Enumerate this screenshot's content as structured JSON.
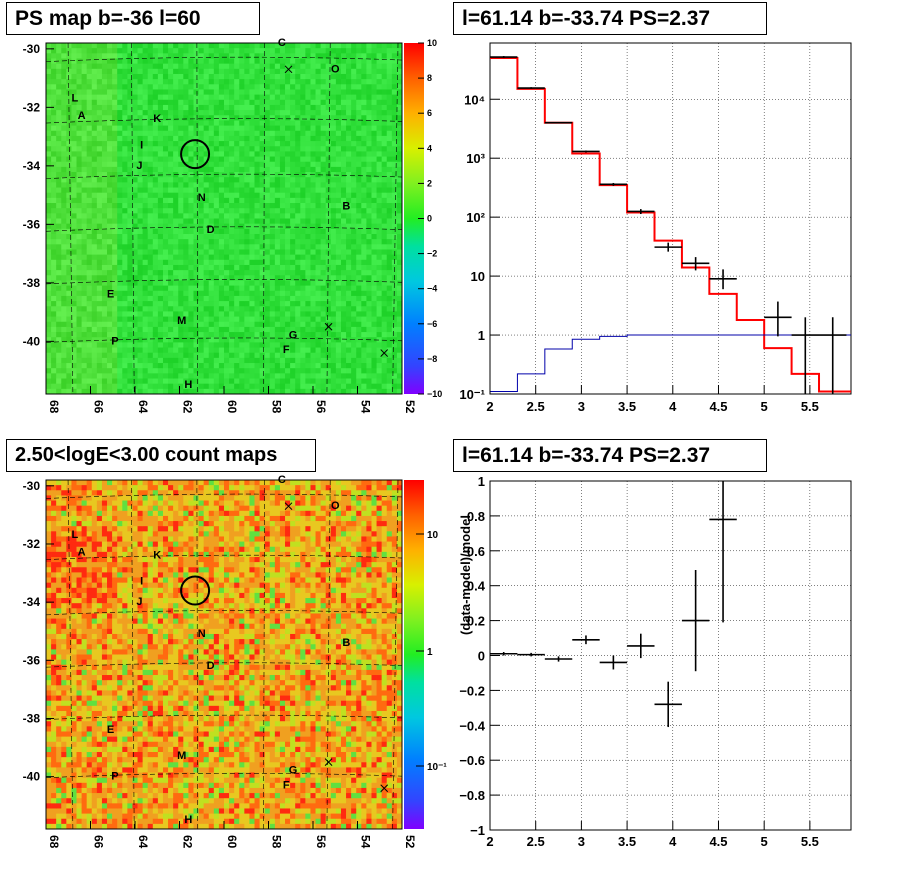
{
  "panels": {
    "top_left_title": "PS map b=-36 l=60",
    "top_right_title": "l=61.14 b=-33.74 PS=2.37",
    "bottom_left_title": "2.50<logE<3.00 count maps",
    "bottom_right_title": "l=61.14 b=-33.74 PS=2.37"
  },
  "chart_data": [
    {
      "type": "heatmap",
      "title": "PS map b=-36 l=60",
      "x_ticks": [
        "68",
        "66",
        "64",
        "62",
        "60",
        "58",
        "56",
        "54",
        "52"
      ],
      "y_ticks": [
        "-30",
        "-32",
        "-34",
        "-36",
        "-38",
        "-40"
      ],
      "xlim": [
        68,
        52
      ],
      "ylim": [
        -41.8,
        -29.8
      ],
      "colorbar": {
        "scale": "linear",
        "range": [
          -10,
          10
        ],
        "ticks": [
          "10",
          "8",
          "6",
          "4",
          "2",
          "0",
          "−2",
          "−4",
          "−6",
          "−8",
          "−10"
        ]
      },
      "dominant_value": 0,
      "source_labels": [
        {
          "label": "C",
          "l": 57.4,
          "b": -29.9
        },
        {
          "label": "O",
          "l": 55.0,
          "b": -30.8
        },
        {
          "label": "L",
          "l": 66.7,
          "b": -31.8
        },
        {
          "label": "A",
          "l": 66.4,
          "b": -32.4
        },
        {
          "label": "K",
          "l": 63.0,
          "b": -32.5
        },
        {
          "label": "I",
          "l": 63.7,
          "b": -33.4
        },
        {
          "label": "J",
          "l": 63.8,
          "b": -34.1
        },
        {
          "label": "N",
          "l": 61.0,
          "b": -35.2
        },
        {
          "label": "B",
          "l": 54.5,
          "b": -35.5
        },
        {
          "label": "D",
          "l": 60.6,
          "b": -36.3
        },
        {
          "label": "E",
          "l": 65.1,
          "b": -38.5
        },
        {
          "label": "M",
          "l": 61.9,
          "b": -39.4
        },
        {
          "label": "G",
          "l": 56.9,
          "b": -39.9
        },
        {
          "label": "P",
          "l": 64.9,
          "b": -40.1
        },
        {
          "label": "F",
          "l": 57.2,
          "b": -40.4
        },
        {
          "label": "H",
          "l": 61.6,
          "b": -41.6
        }
      ],
      "cross_markers": [
        {
          "l": 57.1,
          "b": -30.7
        },
        {
          "l": 55.3,
          "b": -39.5
        },
        {
          "l": 52.8,
          "b": -40.4
        }
      ],
      "circle": {
        "l": 61.3,
        "b": -33.6
      }
    },
    {
      "type": "line",
      "title": "l=61.14 b=-33.74 PS=2.37",
      "xscale": "linear",
      "yscale": "log",
      "xlim": [
        2,
        5.95
      ],
      "ylim": [
        0.1,
        90000
      ],
      "x_ticks": [
        "2",
        "2.5",
        "3",
        "3.5",
        "4",
        "4.5",
        "5",
        "5.5"
      ],
      "y_ticks": [
        "10⁻¹",
        "1",
        "10",
        "10²",
        "10³",
        "10⁴"
      ],
      "grid": true,
      "bin_edges": [
        2.0,
        2.3,
        2.6,
        2.9,
        3.2,
        3.5,
        3.8,
        4.1,
        4.4,
        4.7,
        5.0,
        5.3,
        5.6,
        5.95
      ],
      "series": [
        {
          "color": "#ff0000",
          "style": "step",
          "values": [
            50000,
            15000,
            4000,
            1200,
            350,
            120,
            40,
            14,
            5,
            1.8,
            0.6,
            0.22,
            0.11
          ]
        },
        {
          "color": "#0000aa",
          "style": "step",
          "values": [
            0.11,
            0.22,
            0.58,
            0.85,
            0.95,
            1.0,
            1.0,
            1.0,
            1.0,
            1.0,
            1.0,
            1.0,
            1.0
          ]
        },
        {
          "color": "#000000",
          "style": "errorbars",
          "points": [
            {
              "x": 2.15,
              "y": 52000,
              "ylo": 50000,
              "yhi": 54000
            },
            {
              "x": 2.45,
              "y": 15500,
              "ylo": 15000,
              "yhi": 16000
            },
            {
              "x": 2.75,
              "y": 4000,
              "ylo": 3900,
              "yhi": 4100
            },
            {
              "x": 3.05,
              "y": 1300,
              "ylo": 1250,
              "yhi": 1350
            },
            {
              "x": 3.35,
              "y": 360,
              "ylo": 340,
              "yhi": 380
            },
            {
              "x": 3.65,
              "y": 125,
              "ylo": 113,
              "yhi": 137
            },
            {
              "x": 3.95,
              "y": 31,
              "ylo": 26,
              "yhi": 37
            },
            {
              "x": 4.25,
              "y": 16.5,
              "ylo": 12.5,
              "yhi": 21
            },
            {
              "x": 4.55,
              "y": 9,
              "ylo": 6,
              "yhi": 13
            },
            {
              "x": 5.15,
              "y": 2,
              "ylo": 0.95,
              "yhi": 3.7
            },
            {
              "x": 5.45,
              "y": 1,
              "ylo": 0.1,
              "yhi": 2
            },
            {
              "x": 5.75,
              "y": 1,
              "ylo": 0.1,
              "yhi": 2
            }
          ]
        }
      ]
    },
    {
      "type": "heatmap",
      "title": "2.50<logE<3.00 count maps",
      "x_ticks": [
        "68",
        "66",
        "64",
        "62",
        "60",
        "58",
        "56",
        "54",
        "52"
      ],
      "y_ticks": [
        "-30",
        "-32",
        "-34",
        "-36",
        "-38",
        "-40"
      ],
      "xlim": [
        68,
        52
      ],
      "ylim": [
        -41.8,
        -29.8
      ],
      "colorbar": {
        "scale": "log",
        "ticks": [
          "10",
          "1",
          "10⁻¹"
        ]
      }
    },
    {
      "type": "scatter",
      "title": "l=61.14 b=-33.74 PS=2.37",
      "ylabel": "(data-model)/model",
      "xlim": [
        2,
        5.95
      ],
      "ylim": [
        -1,
        1
      ],
      "x_ticks": [
        "2",
        "2.5",
        "3",
        "3.5",
        "4",
        "4.5",
        "5",
        "5.5"
      ],
      "y_ticks": [
        "1",
        "0.8",
        "0.6",
        "0.4",
        "0.2",
        "0",
        "−0.2",
        "−0.4",
        "−0.6",
        "−0.8",
        "−1"
      ],
      "grid": true,
      "points": [
        {
          "x": 2.15,
          "xerr": 0.15,
          "y": 0.01,
          "yerr": 0.01
        },
        {
          "x": 2.45,
          "xerr": 0.15,
          "y": 0.005,
          "yerr": 0.01
        },
        {
          "x": 2.75,
          "xerr": 0.15,
          "y": -0.02,
          "yerr": 0.015
        },
        {
          "x": 3.05,
          "xerr": 0.15,
          "y": 0.09,
          "yerr": 0.025
        },
        {
          "x": 3.35,
          "xerr": 0.15,
          "y": -0.04,
          "yerr": 0.04
        },
        {
          "x": 3.65,
          "xerr": 0.15,
          "y": 0.055,
          "yerr": 0.07
        },
        {
          "x": 3.95,
          "xerr": 0.15,
          "y": -0.28,
          "yerr": 0.13
        },
        {
          "x": 4.25,
          "xerr": 0.15,
          "y": 0.2,
          "yerr": 0.29
        },
        {
          "x": 4.55,
          "xerr": 0.15,
          "y": 0.78,
          "yerr": 0.59
        }
      ]
    }
  ]
}
